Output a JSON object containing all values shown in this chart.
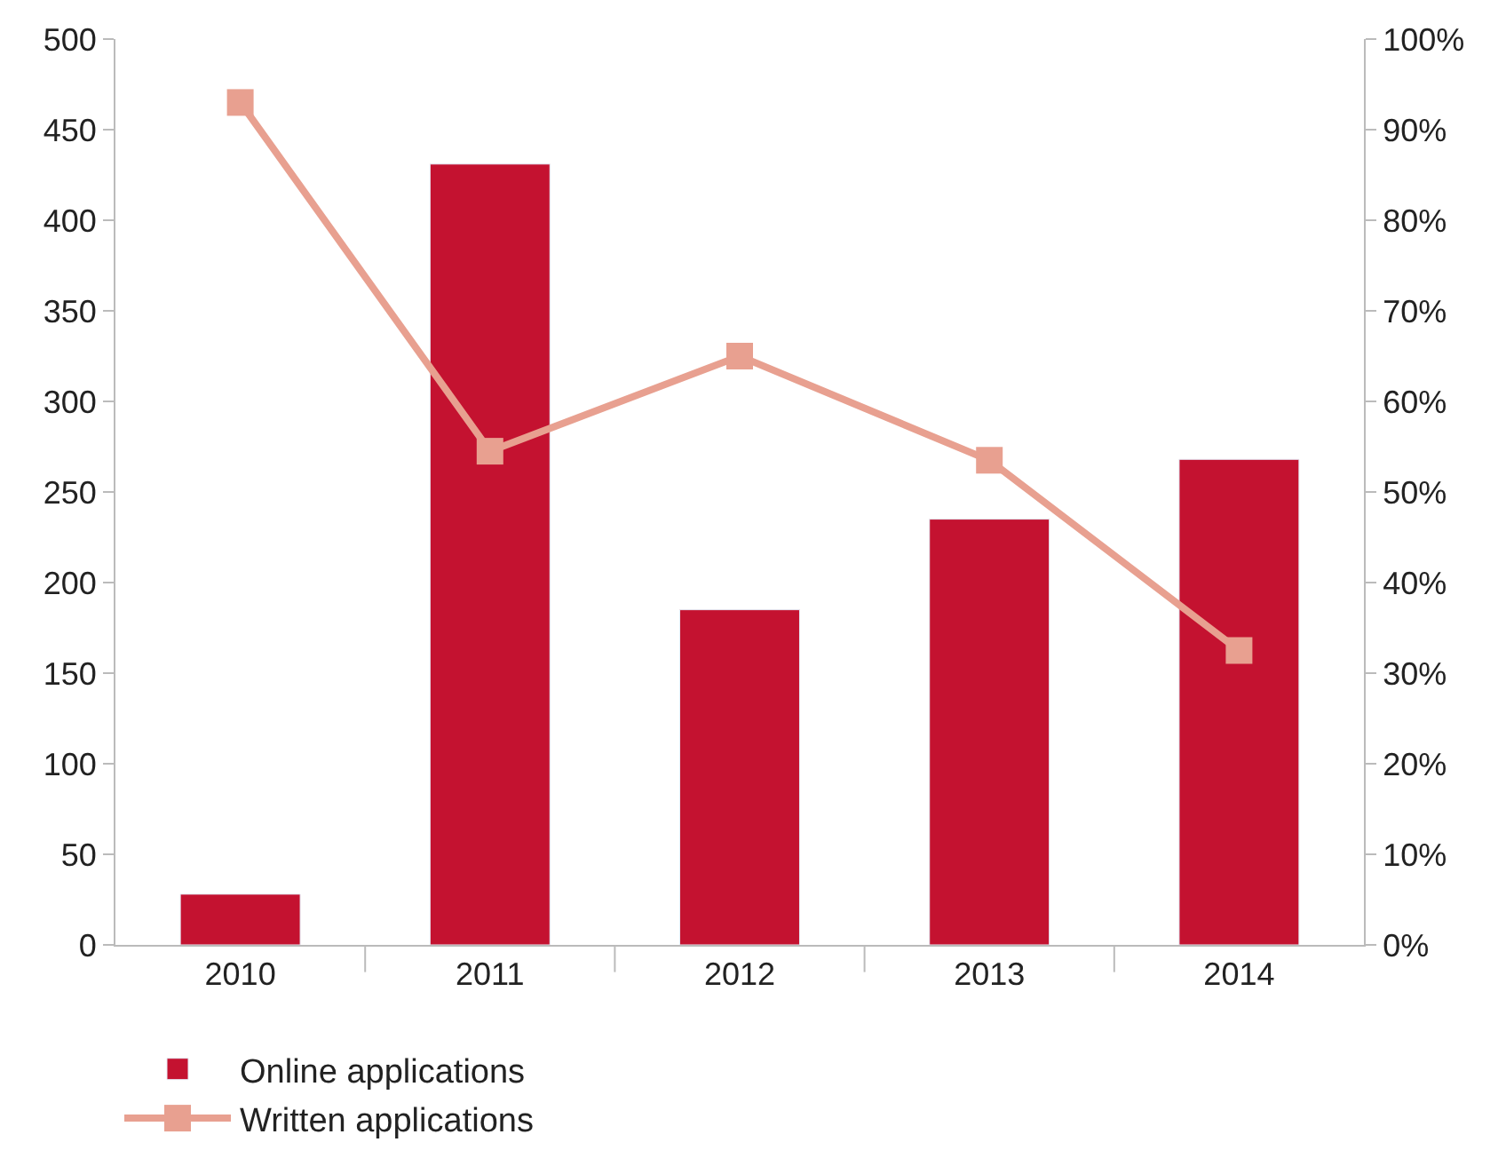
{
  "chart_data": {
    "type": "bar",
    "categories": [
      "2010",
      "2011",
      "2012",
      "2013",
      "2014"
    ],
    "series": [
      {
        "name": "Online applications",
        "color": "#c41230",
        "values": [
          28,
          431,
          185,
          235,
          268
        ]
      },
      {
        "name": "Written applications",
        "type": "line",
        "axis": "y2",
        "color": "#e8a090",
        "marker": "square",
        "values": [
          93,
          54.5,
          65,
          53.5,
          32.5
        ]
      }
    ],
    "ylim": [
      0,
      500
    ],
    "yticks": [
      0,
      50,
      100,
      150,
      200,
      250,
      300,
      350,
      400,
      450,
      500
    ],
    "y2lim": [
      0,
      100
    ],
    "y2ticks": [
      {
        "value": 0,
        "label": "0%"
      },
      {
        "value": 10,
        "label": "10%"
      },
      {
        "value": 20,
        "label": "20%"
      },
      {
        "value": 30,
        "label": "30%"
      },
      {
        "value": 40,
        "label": "40%"
      },
      {
        "value": 50,
        "label": "50%"
      },
      {
        "value": 60,
        "label": "60%"
      },
      {
        "value": 70,
        "label": "70%"
      },
      {
        "value": 80,
        "label": "80%"
      },
      {
        "value": 90,
        "label": "90%"
      },
      {
        "value": 100,
        "label": "100%"
      }
    ],
    "legend": "bottom"
  }
}
